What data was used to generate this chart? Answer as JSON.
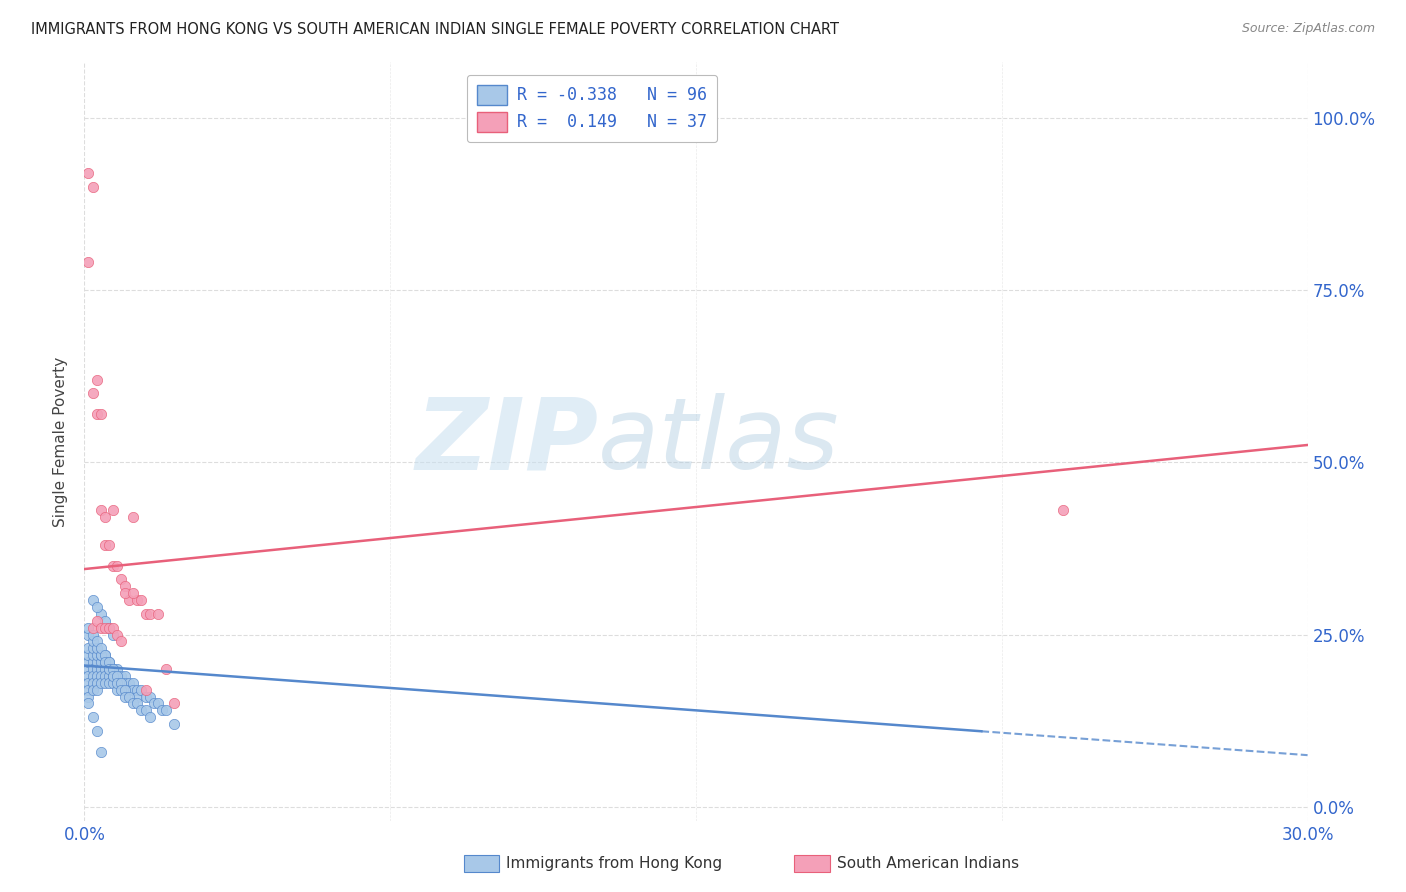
{
  "title": "IMMIGRANTS FROM HONG KONG VS SOUTH AMERICAN INDIAN SINGLE FEMALE POVERTY CORRELATION CHART",
  "source": "Source: ZipAtlas.com",
  "ylabel": "Single Female Poverty",
  "color_hk": "#a8c8e8",
  "color_sa": "#f4a0b8",
  "trendline_hk_color": "#5588cc",
  "trendline_sa_color": "#e8607a",
  "xlim": [
    0.0,
    0.3
  ],
  "ylim": [
    -0.02,
    1.08
  ],
  "ytick_vals": [
    0.0,
    0.25,
    0.5,
    0.75,
    1.0
  ],
  "ytick_labels": [
    "0.0%",
    "25.0%",
    "50.0%",
    "75.0%",
    "100.0%"
  ],
  "xtick_vals": [
    0.0,
    0.3
  ],
  "xtick_labels": [
    "0.0%",
    "30.0%"
  ],
  "grid_color": "#dddddd",
  "watermark_zip_color": "#c8dff0",
  "watermark_atlas_color": "#b0cce0",
  "hk_x": [
    0.001,
    0.001,
    0.001,
    0.001,
    0.001,
    0.001,
    0.001,
    0.001,
    0.002,
    0.002,
    0.002,
    0.002,
    0.002,
    0.002,
    0.002,
    0.003,
    0.003,
    0.003,
    0.003,
    0.003,
    0.003,
    0.004,
    0.004,
    0.004,
    0.004,
    0.004,
    0.005,
    0.005,
    0.005,
    0.005,
    0.005,
    0.006,
    0.006,
    0.006,
    0.006,
    0.007,
    0.007,
    0.007,
    0.008,
    0.008,
    0.008,
    0.009,
    0.009,
    0.01,
    0.01,
    0.01,
    0.011,
    0.011,
    0.012,
    0.012,
    0.013,
    0.013,
    0.014,
    0.015,
    0.016,
    0.017,
    0.018,
    0.019,
    0.02,
    0.022,
    0.001,
    0.001,
    0.002,
    0.002,
    0.003,
    0.003,
    0.004,
    0.004,
    0.005,
    0.005,
    0.006,
    0.006,
    0.007,
    0.007,
    0.008,
    0.008,
    0.009,
    0.009,
    0.01,
    0.01,
    0.011,
    0.012,
    0.013,
    0.014,
    0.015,
    0.016,
    0.004,
    0.005,
    0.006,
    0.007,
    0.002,
    0.003,
    0.004,
    0.001,
    0.002,
    0.003
  ],
  "hk_y": [
    0.2,
    0.19,
    0.21,
    0.22,
    0.18,
    0.17,
    0.23,
    0.16,
    0.21,
    0.2,
    0.22,
    0.19,
    0.18,
    0.23,
    0.17,
    0.2,
    0.21,
    0.19,
    0.22,
    0.18,
    0.17,
    0.2,
    0.21,
    0.19,
    0.18,
    0.22,
    0.2,
    0.19,
    0.21,
    0.18,
    0.22,
    0.2,
    0.19,
    0.18,
    0.21,
    0.19,
    0.2,
    0.18,
    0.19,
    0.2,
    0.17,
    0.19,
    0.18,
    0.19,
    0.18,
    0.17,
    0.18,
    0.17,
    0.18,
    0.17,
    0.17,
    0.16,
    0.17,
    0.16,
    0.16,
    0.15,
    0.15,
    0.14,
    0.14,
    0.12,
    0.25,
    0.26,
    0.24,
    0.25,
    0.23,
    0.24,
    0.22,
    0.23,
    0.22,
    0.21,
    0.21,
    0.2,
    0.2,
    0.19,
    0.19,
    0.18,
    0.18,
    0.17,
    0.17,
    0.16,
    0.16,
    0.15,
    0.15,
    0.14,
    0.14,
    0.13,
    0.28,
    0.27,
    0.26,
    0.25,
    0.3,
    0.29,
    0.08,
    0.15,
    0.13,
    0.11
  ],
  "sa_x": [
    0.001,
    0.002,
    0.001,
    0.003,
    0.002,
    0.003,
    0.004,
    0.004,
    0.005,
    0.005,
    0.006,
    0.007,
    0.007,
    0.008,
    0.009,
    0.01,
    0.011,
    0.012,
    0.013,
    0.014,
    0.015,
    0.016,
    0.018,
    0.02,
    0.022,
    0.002,
    0.003,
    0.004,
    0.005,
    0.006,
    0.007,
    0.008,
    0.009,
    0.01,
    0.012,
    0.015,
    0.24
  ],
  "sa_y": [
    0.92,
    0.9,
    0.79,
    0.62,
    0.6,
    0.57,
    0.57,
    0.43,
    0.42,
    0.38,
    0.38,
    0.35,
    0.43,
    0.35,
    0.33,
    0.32,
    0.3,
    0.42,
    0.3,
    0.3,
    0.28,
    0.28,
    0.28,
    0.2,
    0.15,
    0.26,
    0.27,
    0.26,
    0.26,
    0.26,
    0.26,
    0.25,
    0.24,
    0.31,
    0.31,
    0.17,
    0.43
  ],
  "sa_trendline_x0": 0.0,
  "sa_trendline_y0": 0.345,
  "sa_trendline_x1": 0.3,
  "sa_trendline_y1": 0.525,
  "hk_trendline_x0": 0.0,
  "hk_trendline_y0": 0.205,
  "hk_trendline_x1": 0.3,
  "hk_trendline_y1": 0.075
}
